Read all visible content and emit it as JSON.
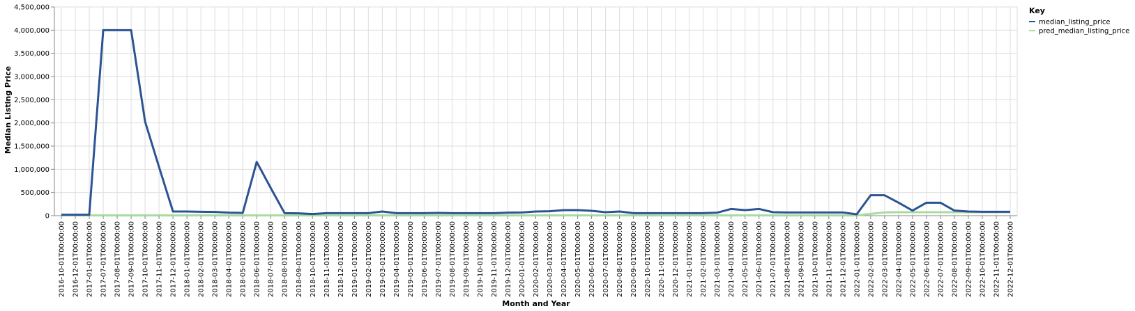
{
  "chart_data": {
    "type": "line",
    "xlabel": "Month and Year",
    "ylabel": "Median Listing Price",
    "ylim": [
      0,
      4500000
    ],
    "y_ticks": [
      0,
      500000,
      1000000,
      1500000,
      2000000,
      2500000,
      3000000,
      3500000,
      4000000,
      4500000
    ],
    "y_tick_labels": [
      "0",
      "500,000",
      "1,000,000",
      "1,500,000",
      "2,000,000",
      "2,500,000",
      "3,000,000",
      "3,500,000",
      "4,000,000",
      "4,500,000"
    ],
    "grid": true,
    "legend": {
      "title": "Key",
      "position": "right"
    },
    "x": [
      "2016-10-01T00:00:00",
      "2016-12-01T00:00:00",
      "2017-01-01T00:00:00",
      "2017-07-01T00:00:00",
      "2017-08-01T00:00:00",
      "2017-09-01T00:00:00",
      "2017-10-01T00:00:00",
      "2017-11-01T00:00:00",
      "2017-12-01T00:00:00",
      "2018-01-01T00:00:00",
      "2018-02-01T00:00:00",
      "2018-03-01T00:00:00",
      "2018-04-01T00:00:00",
      "2018-05-01T00:00:00",
      "2018-06-01T00:00:00",
      "2018-07-01T00:00:00",
      "2018-08-01T00:00:00",
      "2018-09-01T00:00:00",
      "2018-10-01T00:00:00",
      "2018-11-01T00:00:00",
      "2018-12-01T00:00:00",
      "2019-01-01T00:00:00",
      "2019-02-01T00:00:00",
      "2019-03-01T00:00:00",
      "2019-04-01T00:00:00",
      "2019-05-01T00:00:00",
      "2019-06-01T00:00:00",
      "2019-07-01T00:00:00",
      "2019-08-01T00:00:00",
      "2019-09-01T00:00:00",
      "2019-10-01T00:00:00",
      "2019-11-01T00:00:00",
      "2019-12-01T00:00:00",
      "2020-01-01T00:00:00",
      "2020-02-01T00:00:00",
      "2020-03-01T00:00:00",
      "2020-04-01T00:00:00",
      "2020-05-01T00:00:00",
      "2020-06-01T00:00:00",
      "2020-07-01T00:00:00",
      "2020-08-01T00:00:00",
      "2020-09-01T00:00:00",
      "2020-10-01T00:00:00",
      "2020-11-01T00:00:00",
      "2020-12-01T00:00:00",
      "2021-01-01T00:00:00",
      "2021-02-01T00:00:00",
      "2021-03-01T00:00:00",
      "2021-04-01T00:00:00",
      "2021-05-01T00:00:00",
      "2021-06-01T00:00:00",
      "2021-07-01T00:00:00",
      "2021-08-01T00:00:00",
      "2021-09-01T00:00:00",
      "2021-10-01T00:00:00",
      "2021-11-01T00:00:00",
      "2021-12-01T00:00:00",
      "2022-01-01T00:00:00",
      "2022-02-01T00:00:00",
      "2022-03-01T00:00:00",
      "2022-04-01T00:00:00",
      "2022-05-01T00:00:00",
      "2022-06-01T00:00:00",
      "2022-07-01T00:00:00",
      "2022-08-01T00:00:00",
      "2022-09-01T00:00:00",
      "2022-10-01T00:00:00",
      "2022-11-01T00:00:00",
      "2022-12-01T00:00:00"
    ],
    "series": [
      {
        "name": "median_listing_price",
        "color": "#2c5393",
        "values": [
          20000,
          20000,
          20000,
          4000000,
          4000000,
          4000000,
          2030000,
          1050000,
          90000,
          90000,
          85000,
          80000,
          65000,
          60000,
          1160000,
          600000,
          55000,
          50000,
          35000,
          55000,
          55000,
          55000,
          55000,
          90000,
          55000,
          55000,
          55000,
          60000,
          55000,
          55000,
          55000,
          55000,
          65000,
          70000,
          90000,
          95000,
          120000,
          120000,
          105000,
          75000,
          90000,
          55000,
          55000,
          55000,
          55000,
          55000,
          55000,
          65000,
          145000,
          120000,
          145000,
          75000,
          70000,
          70000,
          70000,
          70000,
          70000,
          30000,
          440000,
          440000,
          280000,
          110000,
          280000,
          280000,
          110000,
          90000,
          85000,
          85000,
          85000
        ]
      },
      {
        "name": "pred_median_listing_price",
        "color": "#a8dba0",
        "values": [
          5000,
          5000,
          5000,
          5000,
          5000,
          5000,
          5000,
          5000,
          5000,
          5000,
          5000,
          5000,
          5000,
          5000,
          5000,
          5000,
          5000,
          5000,
          5000,
          5000,
          5000,
          5000,
          5000,
          5000,
          5000,
          5000,
          5000,
          5000,
          5000,
          5000,
          5000,
          5000,
          5000,
          5000,
          5000,
          5000,
          5000,
          5000,
          5000,
          5000,
          5000,
          5000,
          5000,
          5000,
          5000,
          5000,
          5000,
          5000,
          5000,
          5000,
          5000,
          5000,
          5000,
          5000,
          5000,
          5000,
          5000,
          5000,
          40000,
          70000,
          75000,
          75000,
          75000,
          75000,
          75000,
          75000,
          75000,
          75000,
          75000
        ]
      }
    ]
  }
}
